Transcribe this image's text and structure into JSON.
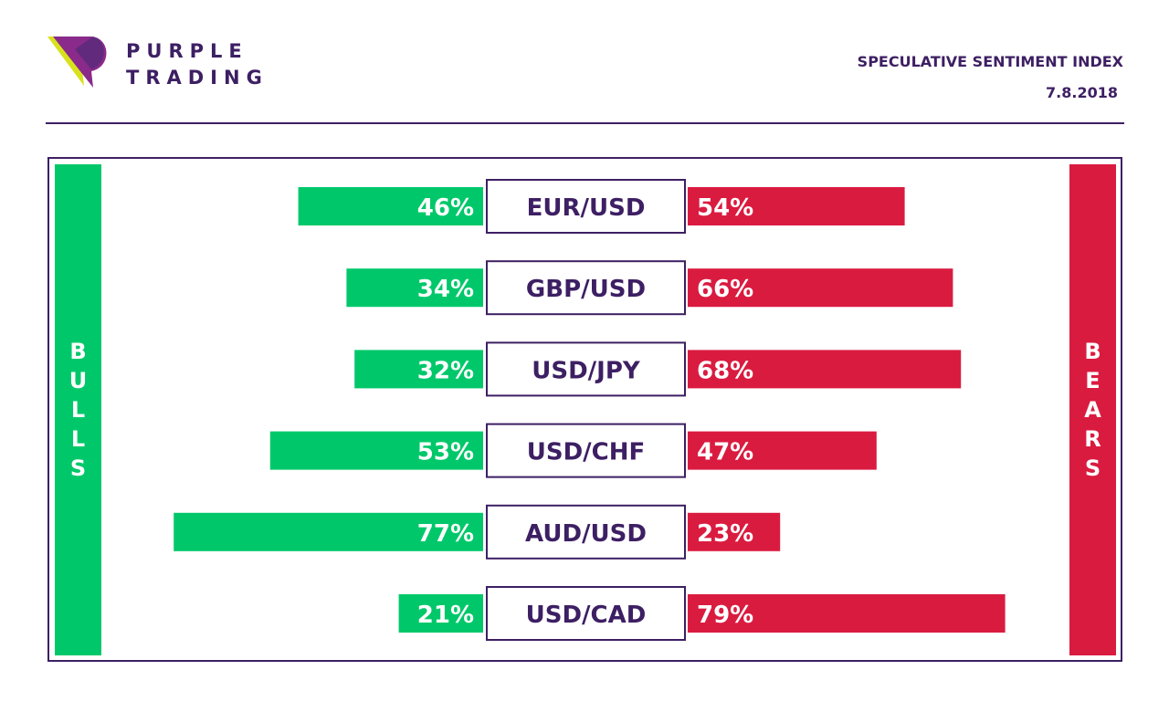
{
  "brand": {
    "line1": "PURPLE",
    "line2": "TRADING",
    "icon": "purple-trading-logo-icon",
    "colors": {
      "purple": "#3d1f63",
      "magenta": "#8a2a8a",
      "yellow": "#d7e21c"
    }
  },
  "header": {
    "title": "SPECULATIVE SENTIMENT INDEX",
    "date": "7.8.2018"
  },
  "colors": {
    "bulls": "#00c86a",
    "bears": "#da1b40",
    "label_border": "#3d1f63",
    "label_text": "#3d1f63"
  },
  "sides": {
    "bulls_label": "BULLS",
    "bears_label": "BEARS"
  },
  "chart_data": {
    "type": "bar",
    "orientation": "horizontal-diverging",
    "categories": [
      "EUR/USD",
      "GBP/USD",
      "USD/JPY",
      "USD/CHF",
      "AUD/USD",
      "USD/CAD"
    ],
    "series": [
      {
        "name": "BULLS",
        "values": [
          46,
          34,
          32,
          53,
          77,
          21
        ],
        "labels": [
          "46%",
          "34%",
          "32%",
          "53%",
          "77%",
          "21%"
        ]
      },
      {
        "name": "BEARS",
        "values": [
          54,
          66,
          68,
          47,
          23,
          79
        ],
        "labels": [
          "54%",
          "66%",
          "68%",
          "47%",
          "23%",
          "79%"
        ]
      }
    ],
    "unit": "%",
    "xlim": [
      0,
      100
    ],
    "grid": false,
    "legend": "sides"
  }
}
